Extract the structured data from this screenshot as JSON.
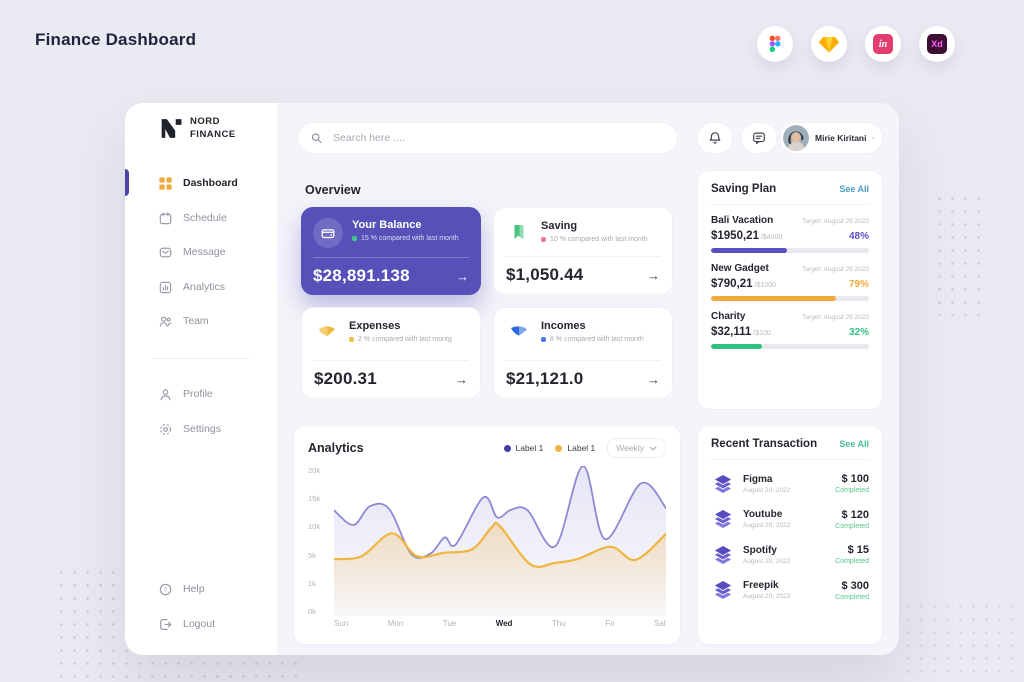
{
  "page": {
    "title": "Finance Dashboard"
  },
  "app_badges": {
    "invision_label": "in",
    "xd_label": "Xd"
  },
  "logo": {
    "line1": "NORD",
    "line2": "FINANCE"
  },
  "sidebar": {
    "items": [
      {
        "label": "Dashboard",
        "active": true
      },
      {
        "label": "Schedule"
      },
      {
        "label": "Message"
      },
      {
        "label": "Analytics"
      },
      {
        "label": "Team"
      }
    ],
    "secondary": [
      {
        "label": "Profile"
      },
      {
        "label": "Settings"
      }
    ],
    "footer": [
      {
        "label": "Help"
      },
      {
        "label": "Logout"
      }
    ]
  },
  "topbar": {
    "search_placeholder": "Search here ....",
    "user_name": "Mirie Kiritani"
  },
  "overview": {
    "title": "Overview",
    "arrow": "→",
    "cards": [
      {
        "title": "Your Balance",
        "change": "15 % compared with last month",
        "amount": "$28,891.138",
        "dot_color": "#3EC98C",
        "variant": "purple"
      },
      {
        "title": "Saving",
        "change": "10 % compared with last month",
        "amount": "$1,050.44",
        "dot_color": "#E87F93"
      },
      {
        "title": "Expenses",
        "change": "2 % compared with last montg",
        "amount": "$200.31",
        "dot_color": "#F0C04A"
      },
      {
        "title": "Incomes",
        "change": "8 % compared with last month",
        "amount": "$21,121.0",
        "dot_color": "#4A79E8"
      }
    ]
  },
  "analytics": {
    "title": "Analytics",
    "legend": [
      {
        "label": "Label 1",
        "color": "#453CA8"
      },
      {
        "label": "Label 1",
        "color": "#F0B43F"
      }
    ],
    "period": "Weekly"
  },
  "chart_data": {
    "type": "area",
    "title": "Analytics",
    "x_labels": [
      "Sun",
      "Mon",
      "Tue",
      "Wed",
      "Thu",
      "Fri",
      "Sat"
    ],
    "active_x_label": "Wed",
    "y_ticks": [
      "20k",
      "15k",
      "10k",
      "5k",
      "1k",
      "0k"
    ],
    "y_value_stops": [
      0,
      1,
      5,
      10,
      15,
      20
    ],
    "unit": "k",
    "legend_position": "top-right",
    "series": [
      {
        "name": "Label 1",
        "color": "#8D89D3",
        "x": [
          0,
          0.35,
          0.65,
          1.0,
          1.4,
          1.75,
          2.0,
          2.2,
          2.7,
          2.95,
          3.2,
          3.5,
          4.0,
          4.5,
          4.9,
          5.55,
          6.0
        ],
        "values": [
          12.8,
          10.3,
          13.5,
          13.0,
          5.3,
          5.5,
          8.2,
          7.0,
          15.0,
          11.6,
          12.9,
          12.8,
          6.7,
          20.3,
          7.9,
          17.4,
          13.2
        ]
      },
      {
        "name": "Label 1",
        "color": "#F0B43F",
        "x": [
          0,
          0.5,
          1.05,
          1.5,
          2.0,
          2.5,
          2.85,
          3.0,
          3.55,
          4.0,
          4.4,
          5.0,
          5.45,
          6.0
        ],
        "values": [
          4.6,
          5.0,
          8.9,
          5.0,
          5.6,
          6.2,
          9.9,
          10.1,
          3.9,
          4.1,
          4.6,
          6.6,
          4.5,
          8.8
        ]
      }
    ]
  },
  "saving_plan": {
    "title": "Saving Plan",
    "see_all": "See All",
    "see_all_color": "#4E9CC6",
    "items": [
      {
        "name": "Bali Vacation",
        "target": "Target: August 25 2022",
        "amount": "$1950,21",
        "of": "/$4000",
        "percent": "48%",
        "value": 48,
        "color": "#5B50C0"
      },
      {
        "name": "New Gadget",
        "target": "Target: August 25 2022",
        "amount": "$790,21",
        "of": "/$1000",
        "percent": "79%",
        "value": 79,
        "color": "#F2A93B"
      },
      {
        "name": "Charity",
        "target": "Target: August 25 2022",
        "amount": "$32,111",
        "of": "/$100",
        "percent": "32%",
        "value": 32,
        "color": "#2FBF81"
      }
    ]
  },
  "transactions": {
    "title": "Recent Transaction",
    "see_all": "See All",
    "see_all_color": "#49BF9B",
    "items": [
      {
        "name": "Figma",
        "date": "August 20, 2022",
        "amount": "$ 100",
        "status": "Completed"
      },
      {
        "name": "Youtube",
        "date": "August 20, 2022",
        "amount": "$ 120",
        "status": "Completed"
      },
      {
        "name": "Spotify",
        "date": "August 20, 2022",
        "amount": "$ 15",
        "status": "Completed"
      },
      {
        "name": "Freepik",
        "date": "August 20, 2022",
        "amount": "$ 300",
        "status": "Completed"
      }
    ]
  }
}
